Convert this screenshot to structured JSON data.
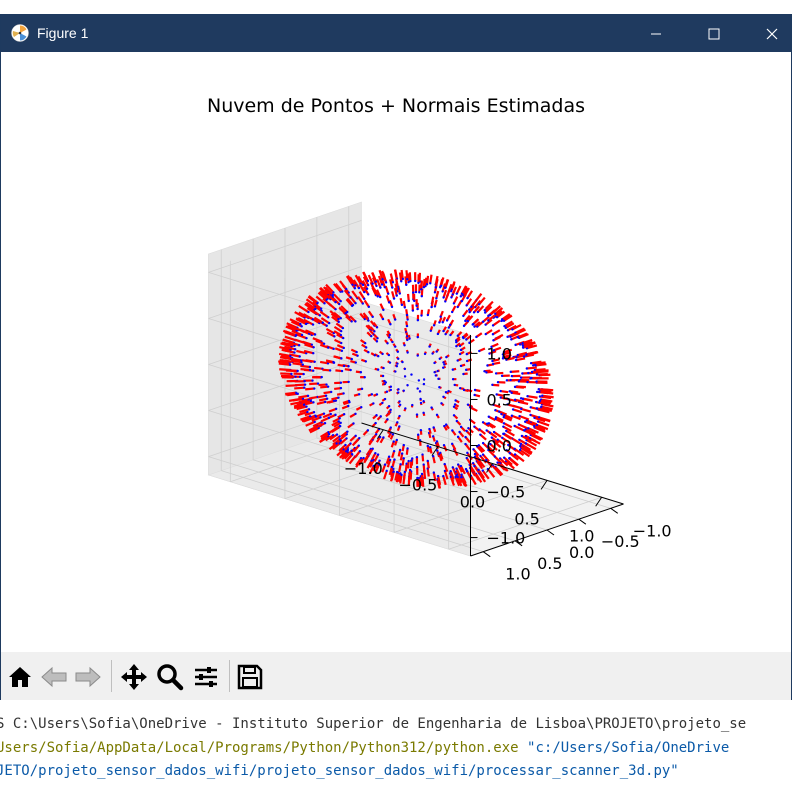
{
  "window": {
    "title": "Figure 1",
    "app_icon": "matplotlib-logo-icon"
  },
  "chart_data": {
    "type": "scatter",
    "projection": "3d",
    "title": "Nuvem de Pontos + Normais Estimadas",
    "description_points": "points sampled on a unit sphere, each with a short surface normal segment",
    "series": [
      {
        "name": "",
        "kind": "points",
        "color": "#0000ff"
      },
      {
        "name": "",
        "kind": "normals",
        "color": "#ff0000"
      }
    ],
    "x_ticks": [
      "−1.0",
      "−0.5",
      "0.0",
      "0.5",
      "1.0"
    ],
    "y_ticks": [
      "−1.0",
      "−0.5",
      "0.0",
      "0.5",
      "1.0"
    ],
    "z_ticks": [
      "−1.0",
      "−0.5",
      "0.0",
      "0.5",
      "1.0"
    ],
    "xlim": [
      -1.2,
      1.2
    ],
    "ylim": [
      -1.2,
      1.2
    ],
    "zlim": [
      -1.2,
      1.2
    ],
    "sphere_radius": 1.0,
    "grid": true,
    "legend": "none"
  },
  "toolbar": {
    "tools": [
      "home-icon",
      "back-icon",
      "forward-icon",
      "pan-icon",
      "zoom-icon",
      "subplots-icon",
      "save-icon"
    ]
  },
  "terminal": {
    "line1": "S C:\\Users\\Sofia\\OneDrive - Instituto Superior de Engenharia de Lisboa\\PROJETO\\projeto_se",
    "line2_exe": "Users/Sofia/AppData/Local/Programs/Python/Python312/python.exe",
    "line2_arg": "\"c:/Users/Sofia/OneDrive",
    "line3": "JETO/projeto_sensor_dados_wifi/projeto_sensor_dados_wifi/processar_scanner_3d.py\""
  }
}
